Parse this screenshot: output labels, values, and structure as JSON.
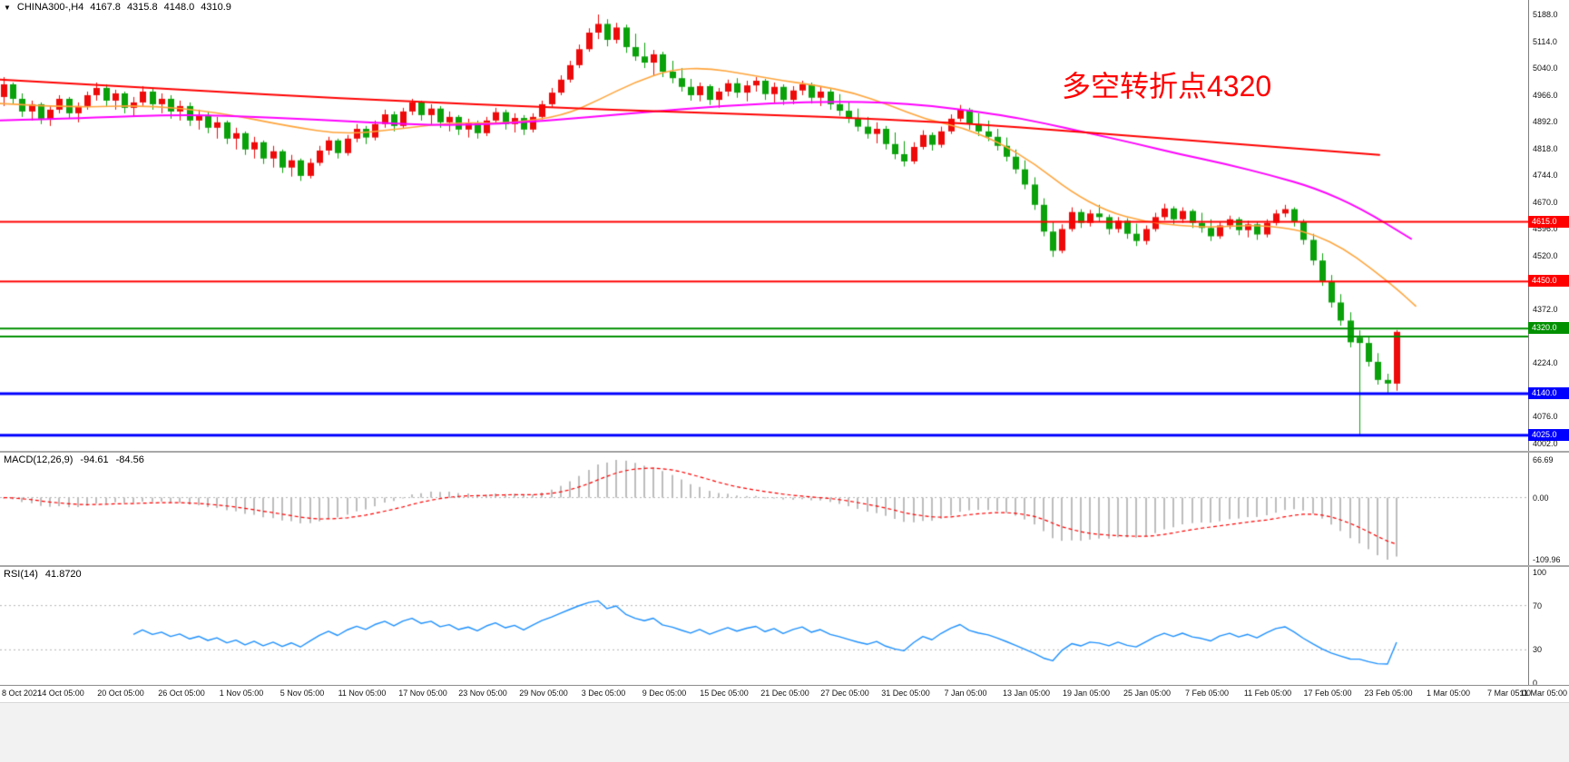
{
  "info_bar": {
    "collapse_icon": "▼",
    "symbol": "CHINA300-,H4",
    "open": "4167.8",
    "high": "4315.8",
    "low": "4148.0",
    "close": "4310.9"
  },
  "annotation": {
    "text": "多空转折点4320",
    "color": "#ff0000"
  },
  "colors": {
    "up": "#ee0a0a",
    "down": "#0aa10a",
    "ma_slow": "#ff0000",
    "ma_mid": "#ff00ff",
    "ma_fast": "#ffa43b",
    "hline_red": "#ff0000",
    "hline_green": "#009000",
    "hline_blue": "#0000ff",
    "macd_hist": "#bdbdbd",
    "macd_signal": "#ff0000",
    "rsi_line": "#1e90ff",
    "level_dotted": "#b4b4b4"
  },
  "chart_data": {
    "type": "candlestick",
    "symbol": "CHINA300-",
    "timeframe": "H4",
    "axis": {
      "max": 5188.0,
      "min": 4002.0
    },
    "axis_ticks": [
      "5188.0",
      "5114.0",
      "5040.0",
      "4966.0",
      "4892.0",
      "4818.0",
      "4744.0",
      "4670.0",
      "4596.0",
      "4520.0",
      "4372.0",
      "4224.0",
      "4076.0",
      "4002.0"
    ],
    "hlines": [
      {
        "price": 4615.0,
        "badge": "4615.0",
        "color_key": "hline_red",
        "width": 2
      },
      {
        "price": 4450.0,
        "badge": "4450.0",
        "color_key": "hline_red",
        "width": 2
      },
      {
        "price": 4320.0,
        "badge": "4320.0",
        "color_key": "hline_green",
        "width": 2
      },
      {
        "price": 4298.0,
        "badge": null,
        "color_key": "hline_green",
        "width": 2
      },
      {
        "price": 4140.0,
        "badge": "4140.0",
        "color_key": "hline_blue",
        "width": 3
      },
      {
        "price": 4025.0,
        "badge": "4025.0",
        "color_key": "hline_blue",
        "width": 3
      }
    ],
    "candles": [
      [
        4960,
        5015,
        4935,
        4995
      ],
      [
        4995,
        5000,
        4940,
        4955
      ],
      [
        4955,
        4970,
        4905,
        4920
      ],
      [
        4920,
        4950,
        4895,
        4940
      ],
      [
        4940,
        4945,
        4885,
        4900
      ],
      [
        4900,
        4935,
        4880,
        4925
      ],
      [
        4925,
        4965,
        4915,
        4955
      ],
      [
        4955,
        4960,
        4900,
        4915
      ],
      [
        4915,
        4945,
        4890,
        4935
      ],
      [
        4935,
        4975,
        4925,
        4965
      ],
      [
        4965,
        5000,
        4950,
        4985
      ],
      [
        4985,
        4995,
        4935,
        4950
      ],
      [
        4950,
        4980,
        4925,
        4970
      ],
      [
        4970,
        4975,
        4915,
        4930
      ],
      [
        4930,
        4960,
        4905,
        4945
      ],
      [
        4945,
        4990,
        4935,
        4975
      ],
      [
        4975,
        4985,
        4925,
        4940
      ],
      [
        4940,
        4970,
        4915,
        4955
      ],
      [
        4955,
        4965,
        4900,
        4920
      ],
      [
        4920,
        4950,
        4895,
        4935
      ],
      [
        4935,
        4945,
        4880,
        4895
      ],
      [
        4895,
        4925,
        4870,
        4910
      ],
      [
        4910,
        4920,
        4860,
        4875
      ],
      [
        4875,
        4905,
        4845,
        4890
      ],
      [
        4890,
        4895,
        4830,
        4845
      ],
      [
        4845,
        4875,
        4815,
        4860
      ],
      [
        4860,
        4865,
        4800,
        4815
      ],
      [
        4815,
        4850,
        4790,
        4835
      ],
      [
        4835,
        4840,
        4775,
        4790
      ],
      [
        4790,
        4825,
        4765,
        4810
      ],
      [
        4810,
        4815,
        4750,
        4765
      ],
      [
        4765,
        4800,
        4740,
        4785
      ],
      [
        4785,
        4790,
        4728,
        4742
      ],
      [
        4742,
        4790,
        4735,
        4778
      ],
      [
        4778,
        4825,
        4770,
        4812
      ],
      [
        4812,
        4850,
        4800,
        4840
      ],
      [
        4840,
        4845,
        4790,
        4805
      ],
      [
        4805,
        4855,
        4798,
        4845
      ],
      [
        4845,
        4885,
        4835,
        4872
      ],
      [
        4872,
        4880,
        4830,
        4848
      ],
      [
        4848,
        4895,
        4840,
        4885
      ],
      [
        4885,
        4925,
        4875,
        4912
      ],
      [
        4912,
        4920,
        4865,
        4880
      ],
      [
        4880,
        4930,
        4872,
        4920
      ],
      [
        4920,
        4955,
        4910,
        4945
      ],
      [
        4945,
        4950,
        4895,
        4910
      ],
      [
        4910,
        4940,
        4885,
        4928
      ],
      [
        4928,
        4935,
        4875,
        4890
      ],
      [
        4890,
        4920,
        4865,
        4905
      ],
      [
        4905,
        4910,
        4855,
        4870
      ],
      [
        4870,
        4900,
        4848,
        4888
      ],
      [
        4888,
        4895,
        4845,
        4860
      ],
      [
        4860,
        4905,
        4852,
        4895
      ],
      [
        4895,
        4930,
        4885,
        4918
      ],
      [
        4918,
        4925,
        4870,
        4885
      ],
      [
        4885,
        4915,
        4862,
        4902
      ],
      [
        4902,
        4910,
        4855,
        4870
      ],
      [
        4870,
        4915,
        4862,
        4905
      ],
      [
        4905,
        4950,
        4898,
        4940
      ],
      [
        4940,
        4985,
        4932,
        4972
      ],
      [
        4972,
        5020,
        4965,
        5008
      ],
      [
        5008,
        5060,
        5000,
        5048
      ],
      [
        5048,
        5105,
        5040,
        5092
      ],
      [
        5092,
        5150,
        5085,
        5138
      ],
      [
        5138,
        5188,
        5120,
        5162
      ],
      [
        5162,
        5175,
        5100,
        5118
      ],
      [
        5118,
        5165,
        5108,
        5152
      ],
      [
        5152,
        5160,
        5082,
        5098
      ],
      [
        5098,
        5135,
        5060,
        5072
      ],
      [
        5072,
        5110,
        5040,
        5055
      ],
      [
        5055,
        5090,
        5020,
        5078
      ],
      [
        5078,
        5085,
        5015,
        5030
      ],
      [
        5030,
        5060,
        4998,
        5012
      ],
      [
        5012,
        5040,
        4975,
        4988
      ],
      [
        4988,
        5010,
        4950,
        4965
      ],
      [
        4965,
        5000,
        4948,
        4990
      ],
      [
        4990,
        4995,
        4938,
        4952
      ],
      [
        4952,
        4985,
        4930,
        4975
      ],
      [
        4975,
        5008,
        4962,
        4998
      ],
      [
        4998,
        5012,
        4958,
        4972
      ],
      [
        4972,
        5005,
        4948,
        4992
      ],
      [
        4992,
        5015,
        4975,
        5005
      ],
      [
        5005,
        5010,
        4952,
        4968
      ],
      [
        4968,
        5000,
        4945,
        4988
      ],
      [
        4988,
        4995,
        4938,
        4952
      ],
      [
        4952,
        4990,
        4940,
        4978
      ],
      [
        4978,
        5005,
        4965,
        4995
      ],
      [
        4995,
        5000,
        4942,
        4958
      ],
      [
        4958,
        4990,
        4935,
        4975
      ],
      [
        4975,
        4982,
        4925,
        4940
      ],
      [
        4940,
        4968,
        4908,
        4922
      ],
      [
        4922,
        4945,
        4888,
        4900
      ],
      [
        4900,
        4928,
        4865,
        4878
      ],
      [
        4878,
        4905,
        4845,
        4858
      ],
      [
        4858,
        4890,
        4832,
        4872
      ],
      [
        4872,
        4880,
        4815,
        4830
      ],
      [
        4830,
        4862,
        4788,
        4802
      ],
      [
        4802,
        4838,
        4768,
        4782
      ],
      [
        4782,
        4835,
        4775,
        4822
      ],
      [
        4822,
        4868,
        4815,
        4855
      ],
      [
        4855,
        4862,
        4812,
        4828
      ],
      [
        4828,
        4878,
        4820,
        4865
      ],
      [
        4865,
        4912,
        4858,
        4900
      ],
      [
        4900,
        4938,
        4892,
        4925
      ],
      [
        4925,
        4930,
        4870,
        4885
      ],
      [
        4885,
        4915,
        4852,
        4865
      ],
      [
        4865,
        4895,
        4838,
        4850
      ],
      [
        4850,
        4872,
        4812,
        4825
      ],
      [
        4825,
        4848,
        4782,
        4795
      ],
      [
        4795,
        4815,
        4748,
        4760
      ],
      [
        4760,
        4785,
        4705,
        4718
      ],
      [
        4718,
        4738,
        4648,
        4662
      ],
      [
        4662,
        4680,
        4575,
        4588
      ],
      [
        4588,
        4615,
        4518,
        4535
      ],
      [
        4535,
        4608,
        4528,
        4595
      ],
      [
        4595,
        4655,
        4588,
        4642
      ],
      [
        4642,
        4650,
        4598,
        4612
      ],
      [
        4612,
        4648,
        4602,
        4638
      ],
      [
        4638,
        4662,
        4615,
        4628
      ],
      [
        4628,
        4635,
        4580,
        4595
      ],
      [
        4595,
        4628,
        4585,
        4618
      ],
      [
        4618,
        4625,
        4568,
        4582
      ],
      [
        4582,
        4610,
        4548,
        4562
      ],
      [
        4562,
        4605,
        4552,
        4595
      ],
      [
        4595,
        4640,
        4588,
        4628
      ],
      [
        4628,
        4665,
        4620,
        4652
      ],
      [
        4652,
        4658,
        4608,
        4622
      ],
      [
        4622,
        4655,
        4612,
        4645
      ],
      [
        4645,
        4650,
        4598,
        4612
      ],
      [
        4612,
        4640,
        4585,
        4598
      ],
      [
        4598,
        4622,
        4562,
        4575
      ],
      [
        4575,
        4615,
        4568,
        4605
      ],
      [
        4605,
        4632,
        4595,
        4622
      ],
      [
        4622,
        4628,
        4578,
        4592
      ],
      [
        4592,
        4618,
        4572,
        4608
      ],
      [
        4608,
        4615,
        4565,
        4580
      ],
      [
        4580,
        4622,
        4572,
        4612
      ],
      [
        4612,
        4648,
        4605,
        4638
      ],
      [
        4638,
        4662,
        4628,
        4650
      ],
      [
        4650,
        4655,
        4602,
        4615
      ],
      [
        4615,
        4622,
        4552,
        4565
      ],
      [
        4565,
        4582,
        4495,
        4508
      ],
      [
        4508,
        4528,
        4438,
        4450
      ],
      [
        4450,
        4468,
        4378,
        4392
      ],
      [
        4392,
        4415,
        4328,
        4342
      ],
      [
        4342,
        4365,
        4268,
        4282
      ],
      [
        4295,
        4315,
        4025,
        4280
      ],
      [
        4280,
        4298,
        4215,
        4228
      ],
      [
        4228,
        4252,
        4165,
        4178
      ],
      [
        4178,
        4195,
        4140,
        4168
      ],
      [
        4167.8,
        4315.8,
        4148,
        4310.9
      ]
    ],
    "ma_slow_points": [
      [
        0,
        5008
      ],
      [
        150,
        4988
      ],
      [
        300,
        4966
      ],
      [
        450,
        4948
      ],
      [
        600,
        4932
      ],
      [
        750,
        4918
      ],
      [
        900,
        4906
      ],
      [
        1050,
        4890
      ],
      [
        1200,
        4862
      ],
      [
        1350,
        4832
      ],
      [
        1520,
        4800
      ]
    ],
    "ma_mid_points": [
      [
        0,
        4895
      ],
      [
        100,
        4902
      ],
      [
        200,
        4912
      ],
      [
        300,
        4904
      ],
      [
        400,
        4890
      ],
      [
        500,
        4880
      ],
      [
        600,
        4893
      ],
      [
        700,
        4916
      ],
      [
        800,
        4936
      ],
      [
        900,
        4948
      ],
      [
        1000,
        4944
      ],
      [
        1100,
        4912
      ],
      [
        1150,
        4888
      ],
      [
        1200,
        4860
      ],
      [
        1250,
        4832
      ],
      [
        1300,
        4802
      ],
      [
        1350,
        4775
      ],
      [
        1400,
        4744
      ],
      [
        1450,
        4708
      ],
      [
        1500,
        4652
      ],
      [
        1555,
        4568
      ]
    ],
    "ma_fast_points": [
      [
        0,
        4942
      ],
      [
        80,
        4930
      ],
      [
        160,
        4938
      ],
      [
        240,
        4918
      ],
      [
        320,
        4878
      ],
      [
        380,
        4856
      ],
      [
        440,
        4872
      ],
      [
        500,
        4890
      ],
      [
        560,
        4886
      ],
      [
        620,
        4908
      ],
      [
        660,
        4952
      ],
      [
        700,
        5002
      ],
      [
        740,
        5036
      ],
      [
        780,
        5040
      ],
      [
        820,
        5024
      ],
      [
        860,
        5006
      ],
      [
        900,
        4992
      ],
      [
        940,
        4972
      ],
      [
        980,
        4938
      ],
      [
        1020,
        4898
      ],
      [
        1060,
        4876
      ],
      [
        1100,
        4836
      ],
      [
        1140,
        4776
      ],
      [
        1180,
        4698
      ],
      [
        1220,
        4644
      ],
      [
        1260,
        4616
      ],
      [
        1300,
        4604
      ],
      [
        1340,
        4600
      ],
      [
        1380,
        4606
      ],
      [
        1420,
        4598
      ],
      [
        1450,
        4578
      ],
      [
        1480,
        4542
      ],
      [
        1510,
        4488
      ],
      [
        1540,
        4428
      ],
      [
        1560,
        4382
      ]
    ]
  },
  "macd": {
    "name": "MACD(12,26,9)",
    "value1": "-94.61",
    "value2": "-84.56",
    "params": [
      12,
      26,
      9
    ],
    "range": {
      "max": 66.69,
      "min": -109.96
    },
    "axis_ticks": [
      {
        "label": "66.69",
        "v": 66.69
      },
      {
        "label": "0.00",
        "v": 0
      },
      {
        "label": "-109.96",
        "v": -109.96
      }
    ]
  },
  "rsi": {
    "name": "RSI(14)",
    "value": "41.8720",
    "period": 14,
    "levels": [
      70,
      30
    ],
    "axis_ticks": [
      {
        "label": "100",
        "v": 100
      },
      {
        "label": "70",
        "v": 70
      },
      {
        "label": "30",
        "v": 30
      },
      {
        "label": "0",
        "v": 0
      }
    ]
  },
  "time_axis": {
    "labels": [
      "8 Oct 2021",
      "14 Oct 05:00",
      "20 Oct 05:00",
      "26 Oct 05:00",
      "1 Nov 05:00",
      "5 Nov 05:00",
      "11 Nov 05:00",
      "17 Nov 05:00",
      "23 Nov 05:00",
      "29 Nov 05:00",
      "3 Dec 05:00",
      "9 Dec 05:00",
      "15 Dec 05:00",
      "21 Dec 05:00",
      "27 Dec 05:00",
      "31 Dec 05:00",
      "7 Jan 05:00",
      "13 Jan 05:00",
      "19 Jan 05:00",
      "25 Jan 05:00",
      "7 Feb 05:00",
      "11 Feb 05:00",
      "17 Feb 05:00",
      "23 Feb 05:00",
      "1 Mar 05:00",
      "7 Mar 05:00",
      "11 Mar 05:00"
    ]
  }
}
